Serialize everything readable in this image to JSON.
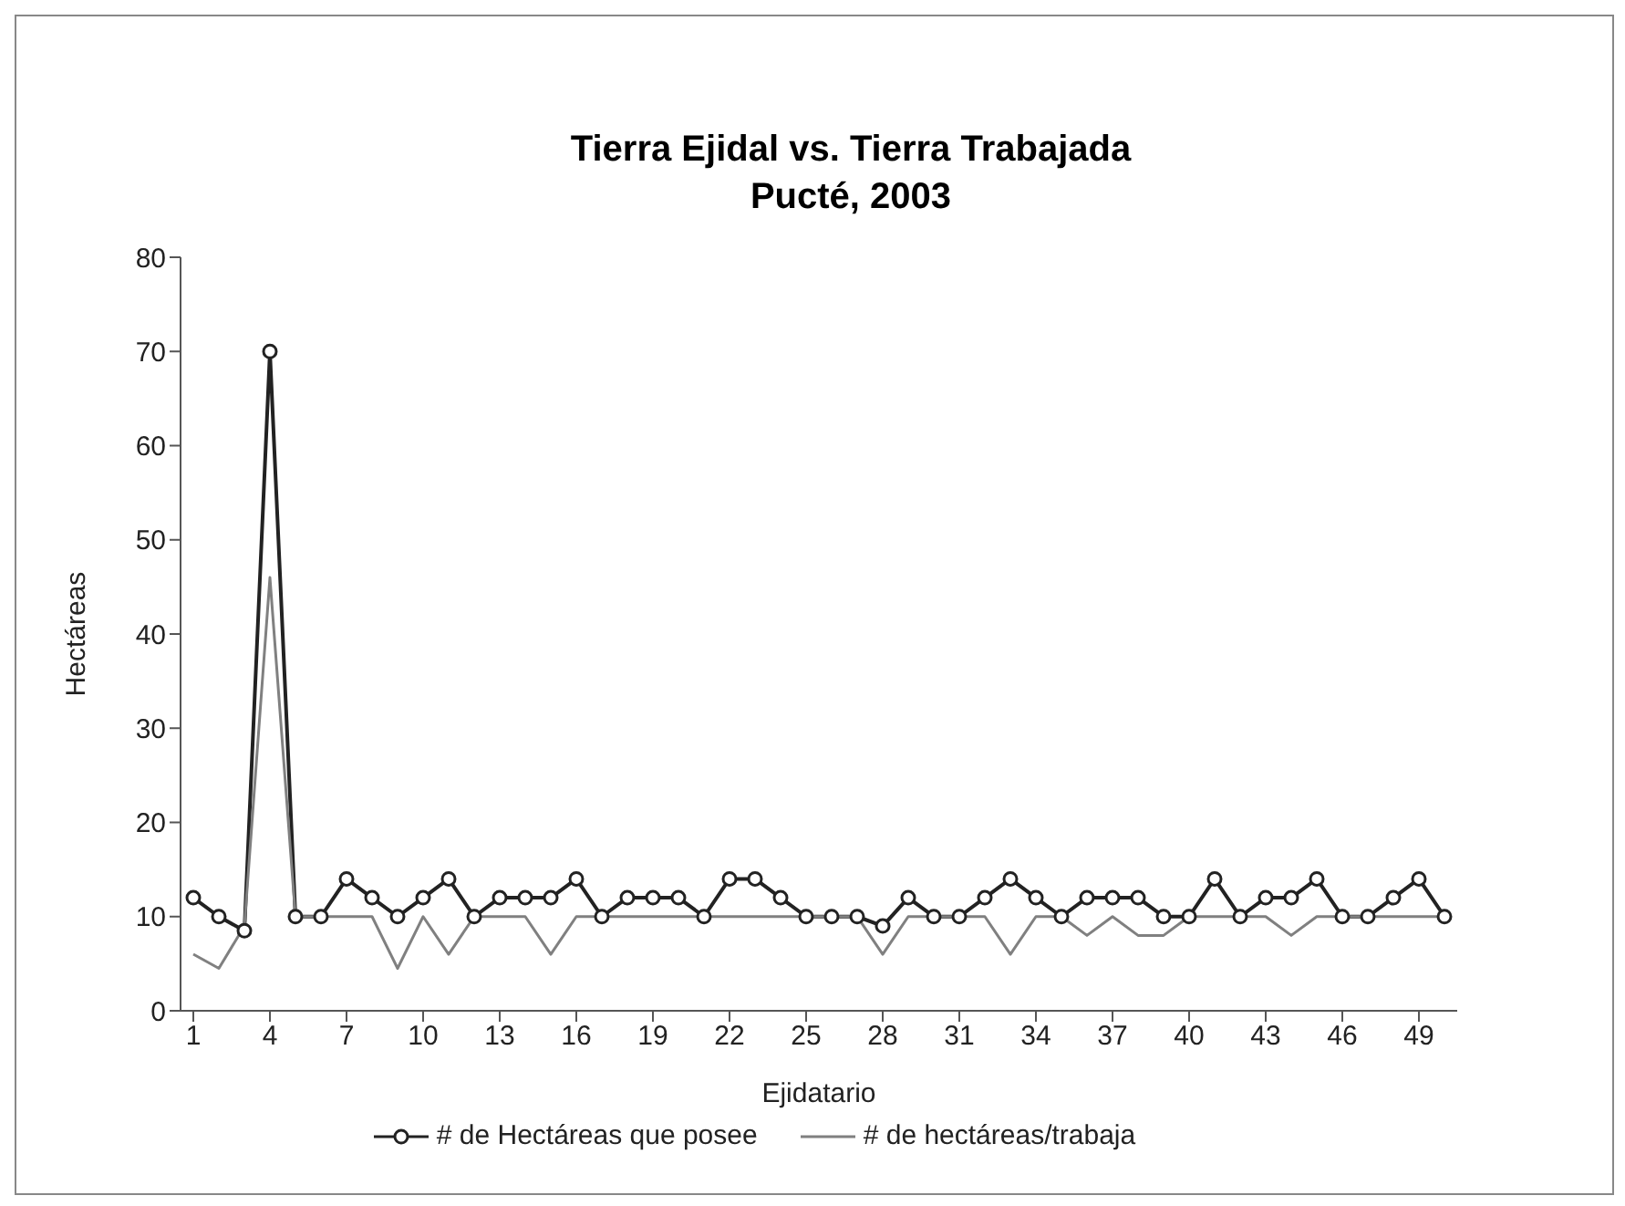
{
  "chart_data": {
    "type": "line",
    "title": "Tierra Ejidal vs. Tierra Trabajada\nPucté, 2003",
    "xlabel": "Ejidatario",
    "ylabel": "Hectáreas",
    "x": [
      1,
      2,
      3,
      4,
      5,
      6,
      7,
      8,
      9,
      10,
      11,
      12,
      13,
      14,
      15,
      16,
      17,
      18,
      19,
      20,
      21,
      22,
      23,
      24,
      25,
      26,
      27,
      28,
      29,
      30,
      31,
      32,
      33,
      34,
      35,
      36,
      37,
      38,
      39,
      40,
      41,
      42,
      43,
      44,
      45,
      46,
      47,
      48,
      49,
      50
    ],
    "xlim": [
      0.5,
      50.5
    ],
    "xticks": [
      1,
      4,
      7,
      10,
      13,
      16,
      19,
      22,
      25,
      28,
      31,
      34,
      37,
      40,
      43,
      46,
      49
    ],
    "ylim": [
      0,
      80
    ],
    "yticks": [
      0,
      10,
      20,
      30,
      40,
      50,
      60,
      70,
      80
    ],
    "grid": false,
    "legend": "bottom",
    "series": [
      {
        "name": "# de Hectáreas que posee",
        "color": "#222222",
        "marker": "circle",
        "values": [
          12,
          10,
          8.5,
          70,
          10,
          10,
          14,
          12,
          10,
          12,
          14,
          10,
          12,
          12,
          12,
          14,
          10,
          12,
          12,
          12,
          10,
          14,
          14,
          12,
          10,
          10,
          10,
          9,
          12,
          10,
          10,
          12,
          14,
          12,
          10,
          12,
          12,
          12,
          10,
          10,
          14,
          10,
          12,
          12,
          14,
          10,
          10,
          12,
          14,
          10
        ]
      },
      {
        "name": "# de hectáreas/trabaja",
        "color": "#808080",
        "marker": "none",
        "values": [
          6,
          4.5,
          9,
          46,
          10,
          10,
          10,
          10,
          4.5,
          10,
          6,
          10,
          10,
          10,
          6,
          10,
          10,
          10,
          10,
          10,
          10,
          10,
          10,
          10,
          10,
          10,
          10,
          6,
          10,
          10,
          10,
          10,
          6,
          10,
          10,
          8,
          10,
          8,
          8,
          10,
          10,
          10,
          10,
          8,
          10,
          10,
          10,
          10,
          10,
          10
        ]
      }
    ]
  }
}
